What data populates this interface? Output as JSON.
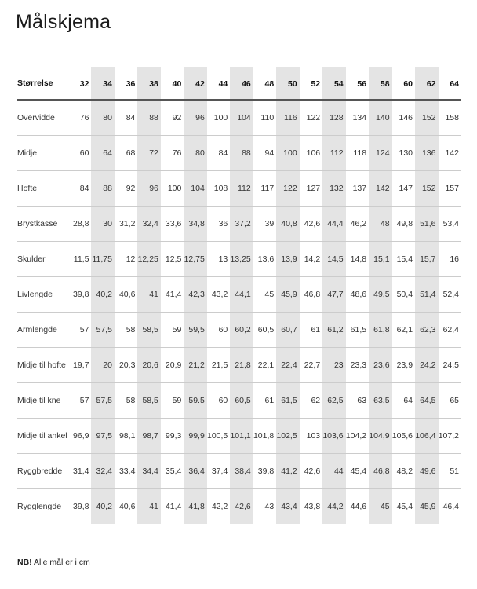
{
  "title": "Målskjema",
  "header_label": "Størrelse",
  "sizes": [
    "32",
    "34",
    "36",
    "38",
    "40",
    "42",
    "44",
    "46",
    "48",
    "50",
    "52",
    "54",
    "56",
    "58",
    "60",
    "62",
    "64"
  ],
  "rows": [
    {
      "label": "Overvidde",
      "values": [
        "76",
        "80",
        "84",
        "88",
        "92",
        "96",
        "100",
        "104",
        "110",
        "116",
        "122",
        "128",
        "134",
        "140",
        "146",
        "152",
        "158"
      ]
    },
    {
      "label": "Midje",
      "values": [
        "60",
        "64",
        "68",
        "72",
        "76",
        "80",
        "84",
        "88",
        "94",
        "100",
        "106",
        "112",
        "118",
        "124",
        "130",
        "136",
        "142"
      ]
    },
    {
      "label": "Hofte",
      "values": [
        "84",
        "88",
        "92",
        "96",
        "100",
        "104",
        "108",
        "112",
        "117",
        "122",
        "127",
        "132",
        "137",
        "142",
        "147",
        "152",
        "157"
      ]
    },
    {
      "label": "Brystkasse",
      "values": [
        "28,8",
        "30",
        "31,2",
        "32,4",
        "33,6",
        "34,8",
        "36",
        "37,2",
        "39",
        "40,8",
        "42,6",
        "44,4",
        "46,2",
        "48",
        "49,8",
        "51,6",
        "53,4"
      ]
    },
    {
      "label": "Skulder",
      "values": [
        "11,5",
        "11,75",
        "12",
        "12,25",
        "12,5",
        "12,75",
        "13",
        "13,25",
        "13,6",
        "13,9",
        "14,2",
        "14,5",
        "14,8",
        "15,1",
        "15,4",
        "15,7",
        "16"
      ]
    },
    {
      "label": "Livlengde",
      "values": [
        "39,8",
        "40,2",
        "40,6",
        "41",
        "41,4",
        "42,3",
        "43,2",
        "44,1",
        "45",
        "45,9",
        "46,8",
        "47,7",
        "48,6",
        "49,5",
        "50,4",
        "51,4",
        "52,4"
      ]
    },
    {
      "label": "Armlengde",
      "values": [
        "57",
        "57,5",
        "58",
        "58,5",
        "59",
        "59,5",
        "60",
        "60,2",
        "60,5",
        "60,7",
        "61",
        "61,2",
        "61,5",
        "61,8",
        "62,1",
        "62,3",
        "62,4"
      ]
    },
    {
      "label": "Midje til hofte",
      "values": [
        "19,7",
        "20",
        "20,3",
        "20,6",
        "20,9",
        "21,2",
        "21,5",
        "21,8",
        "22,1",
        "22,4",
        "22,7",
        "23",
        "23,3",
        "23,6",
        "23,9",
        "24,2",
        "24,5"
      ]
    },
    {
      "label": "Midje til kne",
      "values": [
        "57",
        "57,5",
        "58",
        "58,5",
        "59",
        "59.5",
        "60",
        "60,5",
        "61",
        "61,5",
        "62",
        "62,5",
        "63",
        "63,5",
        "64",
        "64,5",
        "65"
      ]
    },
    {
      "label": "Midje til ankel",
      "values": [
        "96,9",
        "97,5",
        "98,1",
        "98,7",
        "99,3",
        "99,9",
        "100,5",
        "101,1",
        "101,8",
        "102,5",
        "103",
        "103,6",
        "104,2",
        "104,9",
        "105,6",
        "106,4",
        "107,2"
      ]
    },
    {
      "label": "Ryggbredde",
      "values": [
        "31,4",
        "32,4",
        "33,4",
        "34,4",
        "35,4",
        "36,4",
        "37,4",
        "38,4",
        "39,8",
        "41,2",
        "42,6",
        "44",
        "45,4",
        "46,8",
        "48,2",
        "49,6",
        "51"
      ]
    },
    {
      "label": "Rygglengde",
      "values": [
        "39,8",
        "40,2",
        "40,6",
        "41",
        "41,4",
        "41,8",
        "42,2",
        "42,6",
        "43",
        "43,4",
        "43,8",
        "44,2",
        "44,6",
        "45",
        "45,4",
        "45,9",
        "46,4"
      ]
    }
  ],
  "note": {
    "bold": "NB!",
    "text": " Alle mål er i cm"
  },
  "colors": {
    "shade": "#e4e4e4",
    "rule": "#cccccc",
    "header_rule": "#555555"
  }
}
